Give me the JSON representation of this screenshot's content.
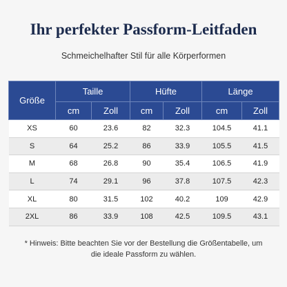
{
  "header": {
    "title": "Ihr perfekter Passform-Leitfaden",
    "subtitle": "Schmeichelhafter Stil für alle Körperformen"
  },
  "table": {
    "size_label": "Größe",
    "groups": [
      {
        "name": "Taille",
        "units": [
          "cm",
          "Zoll"
        ]
      },
      {
        "name": "Hüfte",
        "units": [
          "cm",
          "Zoll"
        ]
      },
      {
        "name": "Länge",
        "units": [
          "cm",
          "Zoll"
        ]
      }
    ],
    "rows": [
      [
        "XS",
        60,
        23.6,
        82,
        32.3,
        104.5,
        41.1
      ],
      [
        "S",
        64,
        25.2,
        86,
        33.9,
        105.5,
        41.5
      ],
      [
        "M",
        68,
        26.8,
        90,
        35.4,
        106.5,
        41.9
      ],
      [
        "L",
        74,
        29.1,
        96,
        37.8,
        107.5,
        42.3
      ],
      [
        "XL",
        80,
        31.5,
        102,
        40.2,
        109,
        42.9
      ],
      [
        "2XL",
        86,
        33.9,
        108,
        42.5,
        109.5,
        43.1
      ]
    ]
  },
  "note": "* Hinweis: Bitte beachten Sie vor der Bestellung die Größentabelle, um die ideale Passform zu wählen."
}
